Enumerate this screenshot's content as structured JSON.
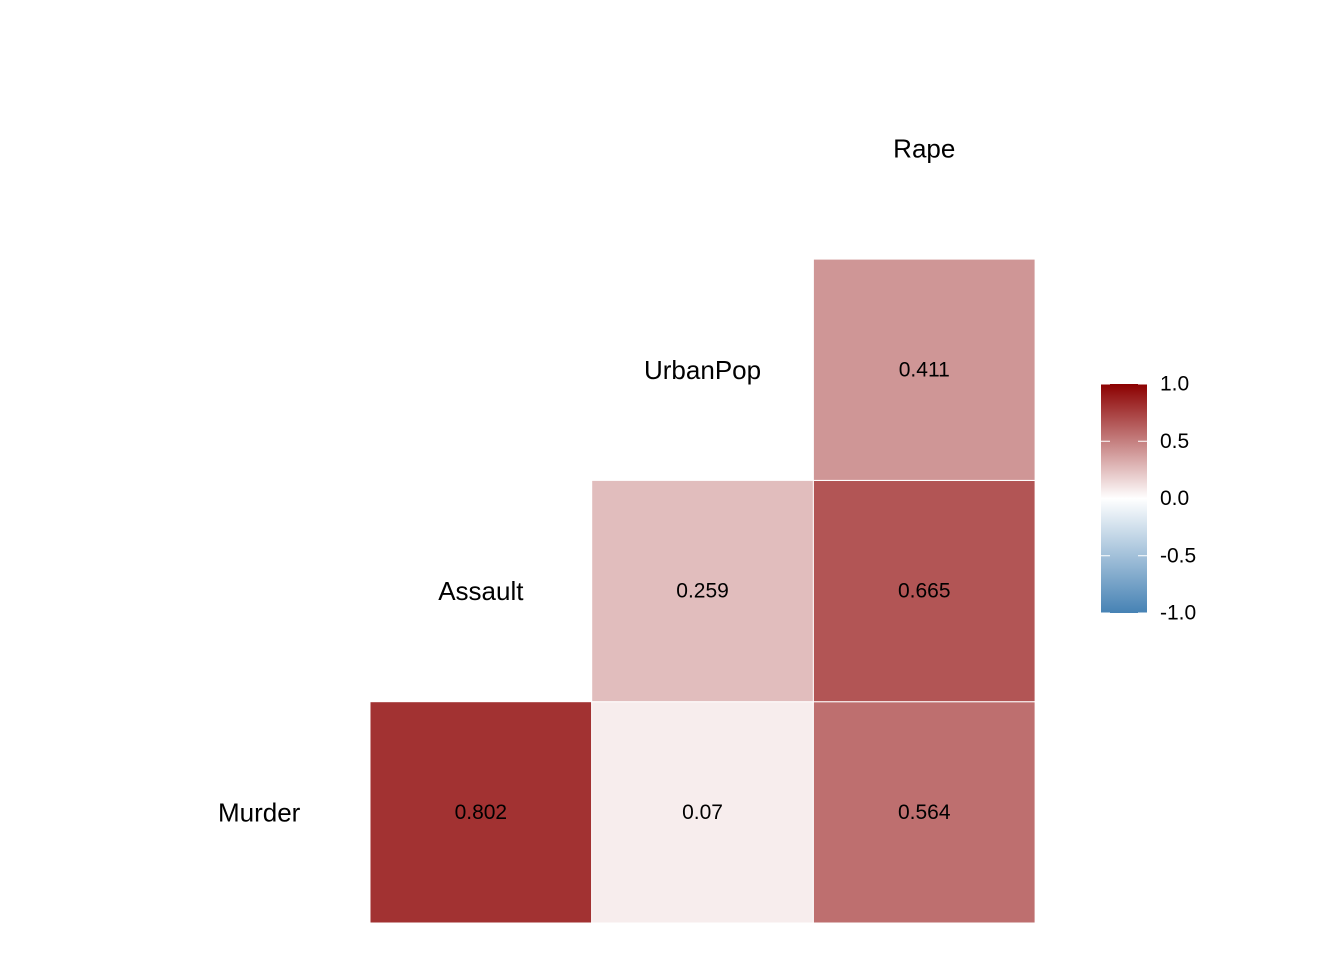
{
  "chart_data": {
    "type": "heatmap",
    "variables": [
      "Murder",
      "Assault",
      "UrbanPop",
      "Rape"
    ],
    "cells": [
      {
        "row": "Murder",
        "col": "Assault",
        "value": 0.802,
        "label": "0.802"
      },
      {
        "row": "Murder",
        "col": "UrbanPop",
        "value": 0.07,
        "label": "0.07"
      },
      {
        "row": "Murder",
        "col": "Rape",
        "value": 0.564,
        "label": "0.564"
      },
      {
        "row": "Assault",
        "col": "UrbanPop",
        "value": 0.259,
        "label": "0.259"
      },
      {
        "row": "Assault",
        "col": "Rape",
        "value": 0.665,
        "label": "0.665"
      },
      {
        "row": "UrbanPop",
        "col": "Rape",
        "value": 0.411,
        "label": "0.411"
      }
    ],
    "legend": {
      "range": [
        -1,
        1
      ],
      "ticks": [
        1.0,
        0.5,
        0.0,
        -0.5,
        -1.0
      ],
      "tick_labels": [
        "1.0",
        "0.5",
        "0.0",
        "-0.5",
        "-1.0"
      ],
      "colors": {
        "low": "#4682b4",
        "mid": "#ffffff",
        "high": "#8b0000"
      },
      "placement": "right"
    },
    "grid": false
  }
}
